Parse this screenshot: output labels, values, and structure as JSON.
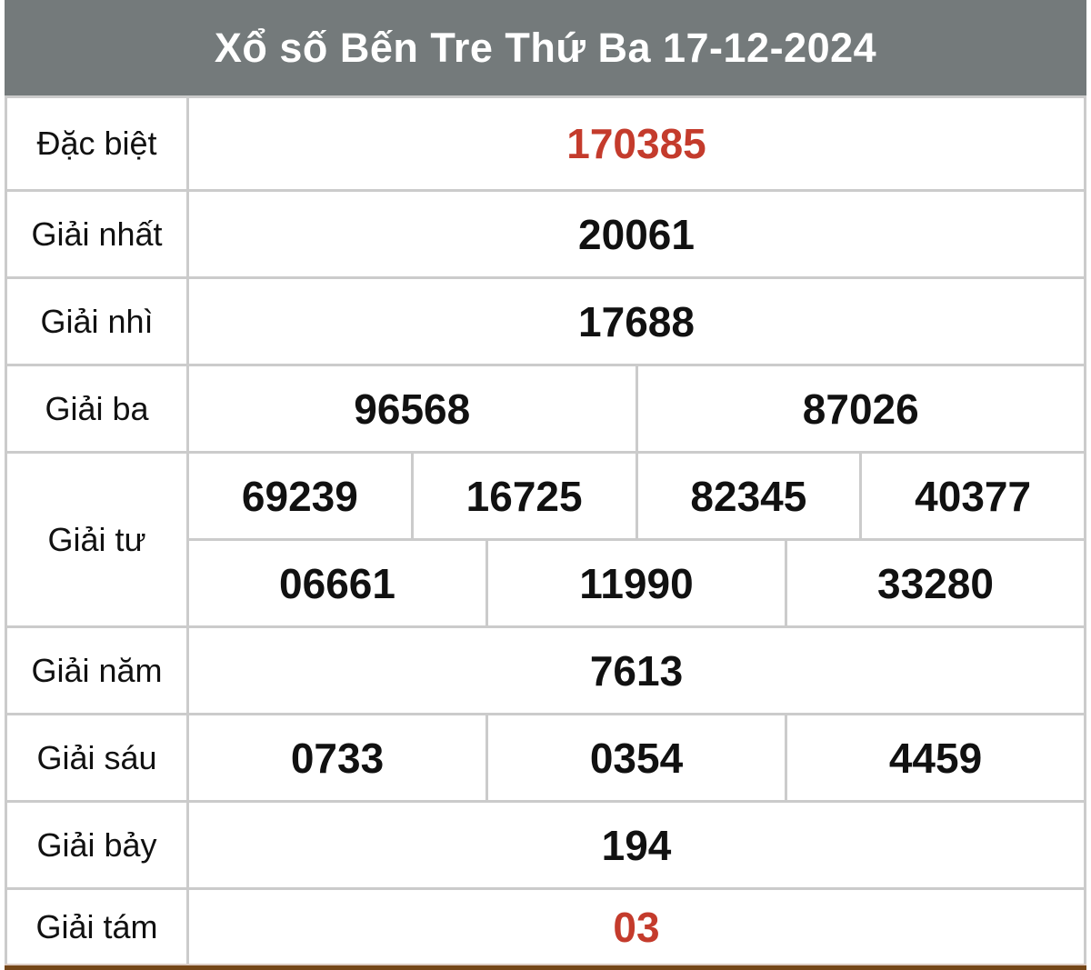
{
  "header": {
    "title": "Xổ số Bến Tre Thứ Ba 17-12-2024"
  },
  "colors": {
    "header_bg": "#747a7b",
    "value_red": "#c43b2c",
    "border_gray": "#cbcbcb",
    "cell_bg": "#ffffff",
    "bottom_bar_brown": "#754718",
    "bottom_accent": "#ddccc4"
  },
  "rows": [
    {
      "label": "Đặc biệt",
      "highlight": true,
      "groups": [
        [
          "170385"
        ]
      ]
    },
    {
      "label": "Giải nhất",
      "highlight": false,
      "groups": [
        [
          "20061"
        ]
      ]
    },
    {
      "label": "Giải nhì",
      "highlight": false,
      "groups": [
        [
          "17688"
        ]
      ]
    },
    {
      "label": "Giải ba",
      "highlight": false,
      "groups": [
        [
          "96568",
          "87026"
        ]
      ]
    },
    {
      "label": "Giải tư",
      "highlight": false,
      "groups": [
        [
          "69239",
          "16725",
          "82345",
          "40377"
        ],
        [
          "06661",
          "11990",
          "33280"
        ]
      ]
    },
    {
      "label": "Giải năm",
      "highlight": false,
      "groups": [
        [
          "7613"
        ]
      ]
    },
    {
      "label": "Giải sáu",
      "highlight": false,
      "groups": [
        [
          "0733",
          "0354",
          "4459"
        ]
      ]
    },
    {
      "label": "Giải bảy",
      "highlight": false,
      "groups": [
        [
          "194"
        ]
      ]
    },
    {
      "label": "Giải tám",
      "highlight": true,
      "groups": [
        [
          "03"
        ]
      ]
    }
  ]
}
